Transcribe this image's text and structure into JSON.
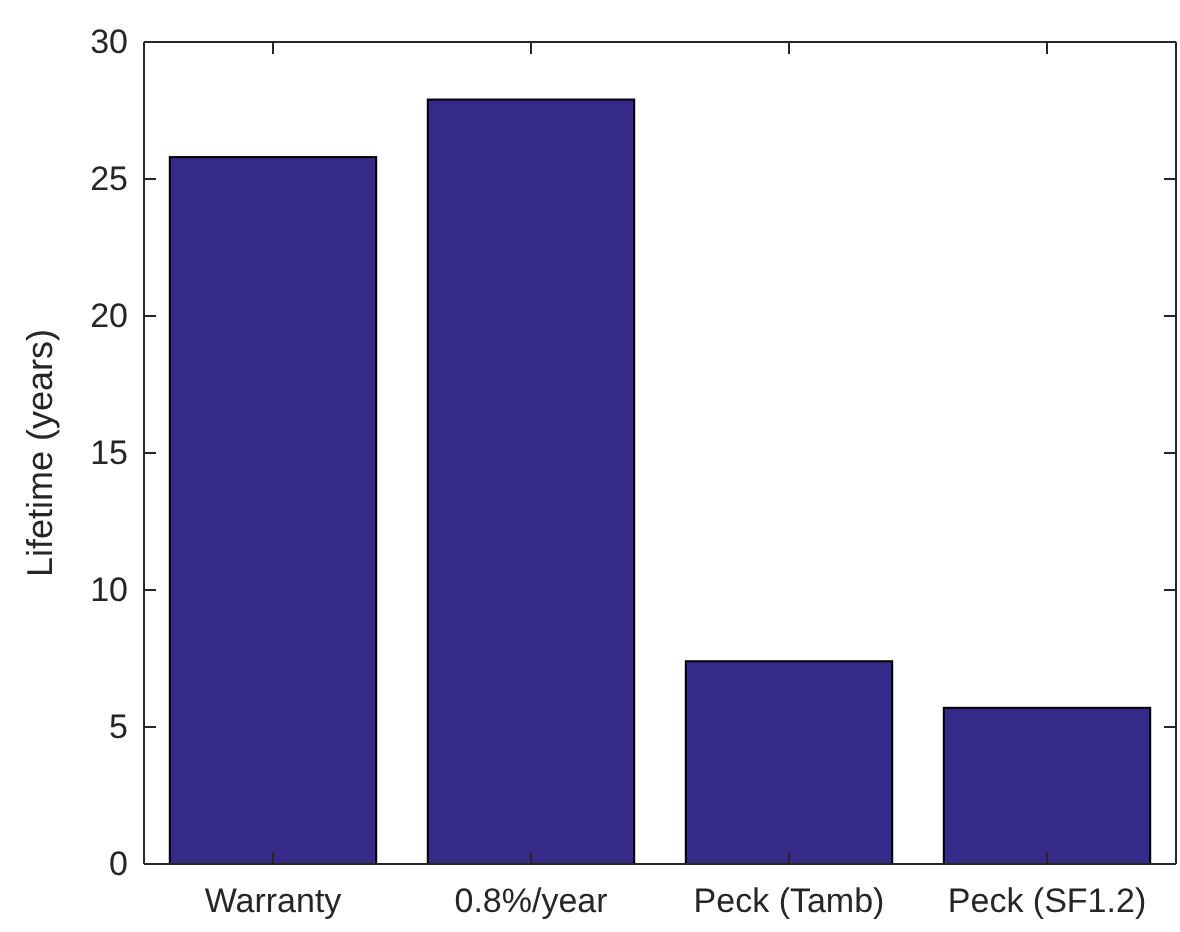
{
  "chart_data": {
    "type": "bar",
    "ylabel": "Lifetime (years)",
    "categories": [
      "Warranty",
      "0.8%/year",
      "Peck (Tamb)",
      "Peck (SF1.2)"
    ],
    "values": [
      25.8,
      27.9,
      7.4,
      5.7
    ],
    "color": "#352a87",
    "ylim": [
      0,
      30
    ],
    "yticks": [
      0,
      5,
      10,
      15,
      20,
      25,
      30
    ],
    "grid": false
  }
}
